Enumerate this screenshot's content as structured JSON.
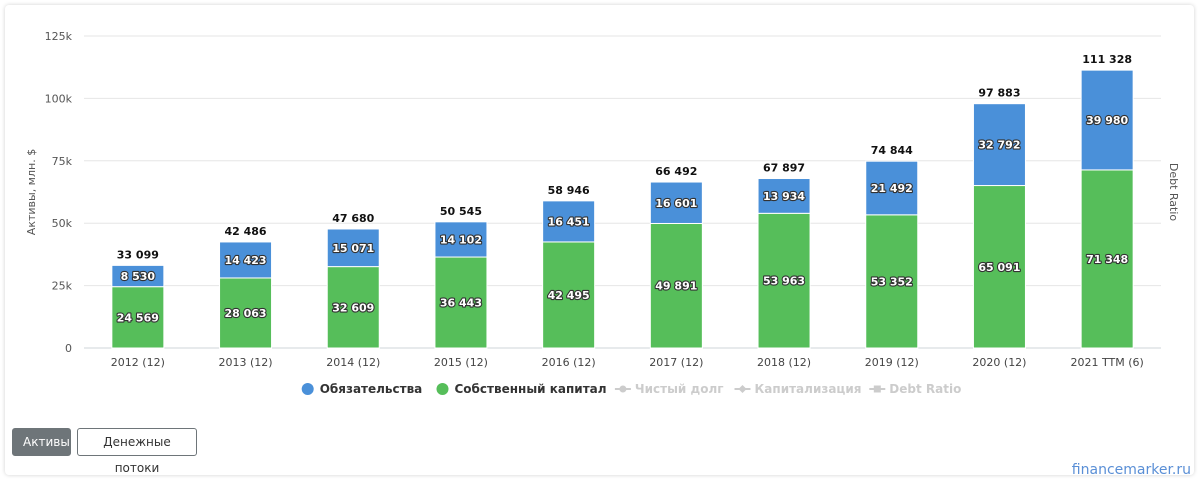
{
  "chart_data": {
    "type": "bar",
    "stacked": true,
    "categories": [
      "2012 (12)",
      "2013 (12)",
      "2014 (12)",
      "2015 (12)",
      "2016 (12)",
      "2017 (12)",
      "2018 (12)",
      "2019 (12)",
      "2020 (12)",
      "2021 TTM (6)"
    ],
    "series": [
      {
        "name": "Собственный капитал",
        "color": "#56be5a",
        "values": [
          24569,
          28063,
          32609,
          36443,
          42495,
          49891,
          53963,
          53352,
          65091,
          71348
        ],
        "labels": [
          "24 569",
          "28 063",
          "32 609",
          "36 443",
          "42 495",
          "49 891",
          "53 963",
          "53 352",
          "65 091",
          "71 348"
        ]
      },
      {
        "name": "Обязательства",
        "color": "#4a90d9",
        "values": [
          8530,
          14423,
          15071,
          14102,
          16451,
          16601,
          13934,
          21492,
          32792,
          39980
        ],
        "labels": [
          "8 530",
          "14 423",
          "15 071",
          "14 102",
          "16 451",
          "16 601",
          "13 934",
          "21 492",
          "32 792",
          "39 980"
        ]
      }
    ],
    "totals": [
      "33 099",
      "42 486",
      "47 680",
      "50 545",
      "58 946",
      "66 492",
      "67 897",
      "74 844",
      "97 883",
      "111 328"
    ],
    "ylabel": "Активы, млн. $",
    "y2label": "Debt Ratio",
    "ylim": [
      0,
      125000
    ],
    "yticks": [
      0,
      25000,
      50000,
      75000,
      100000,
      125000
    ],
    "ytick_labels": [
      "0",
      "25k",
      "50k",
      "75k",
      "100k",
      "125k"
    ],
    "grid": true,
    "legend_position": "bottom-center",
    "legend": [
      {
        "label": "Обязательства",
        "color": "#4a90d9",
        "active": true,
        "marker": "circle"
      },
      {
        "label": "Собственный капитал",
        "color": "#56be5a",
        "active": true,
        "marker": "circle"
      },
      {
        "label": "Чистый долг",
        "color": "#cccccc",
        "active": false,
        "marker": "line-dot"
      },
      {
        "label": "Капитализация",
        "color": "#cccccc",
        "active": false,
        "marker": "line-diamond"
      },
      {
        "label": "Debt Ratio",
        "color": "#cccccc",
        "active": false,
        "marker": "line-square"
      }
    ]
  },
  "buttons": {
    "assets": "Активы",
    "cashflow": "Денежные потоки"
  },
  "brand": "financemarker.ru"
}
